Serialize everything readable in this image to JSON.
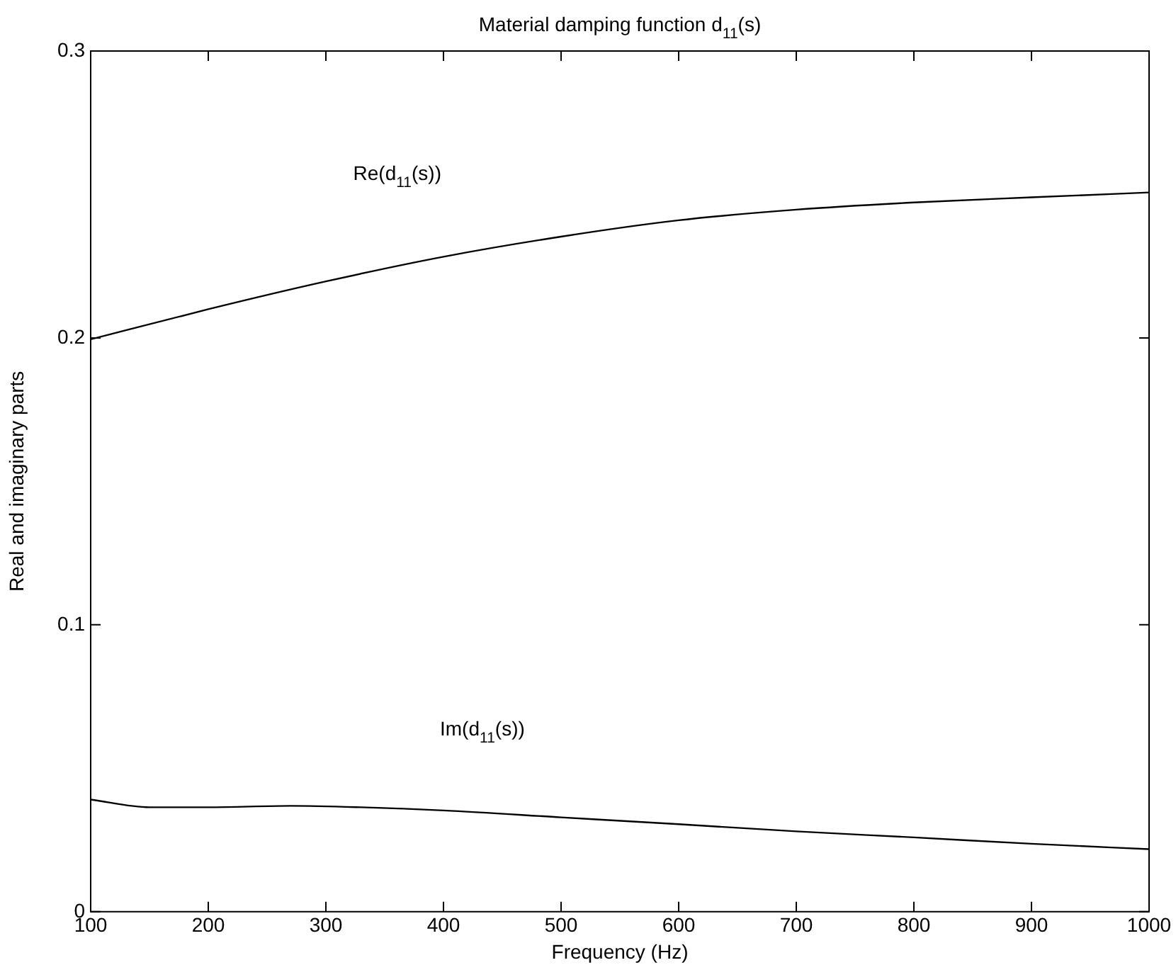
{
  "chart_data": {
    "type": "line",
    "title": "Material damping function d$_{11}$(s)",
    "xlabel": "Frequency (Hz)",
    "ylabel": "Real and imaginary parts",
    "xlim": [
      100,
      1000
    ],
    "xticks": [
      100,
      200,
      300,
      400,
      500,
      600,
      700,
      800,
      900,
      1000
    ],
    "ylim": [
      0,
      0.3
    ],
    "yticks": [
      0,
      0.1,
      0.2,
      0.3
    ],
    "grid": false,
    "legend": false,
    "marker": "none",
    "line_style": "solid",
    "series": [
      {
        "color": "#000000",
        "x": [
          100,
          200,
          300,
          400,
          500,
          600,
          700,
          800,
          900,
          1000
        ],
        "values": [
          0.1995,
          0.21,
          0.2197,
          0.2283,
          0.2353,
          0.241,
          0.2447,
          0.2472,
          0.249,
          0.2507
        ]
      },
      {
        "color": "#000000",
        "x": [
          100,
          150,
          200,
          270,
          330,
          400,
          500,
          600,
          700,
          800,
          900,
          1000
        ],
        "values": [
          0.0391,
          0.0364,
          0.0364,
          0.0369,
          0.0364,
          0.0353,
          0.0329,
          0.0305,
          0.028,
          0.0259,
          0.0237,
          0.0218
        ]
      }
    ],
    "annotations": [
      "Re(d$_{11}$(s))",
      "Im(d$_{11}$(s))"
    ]
  }
}
